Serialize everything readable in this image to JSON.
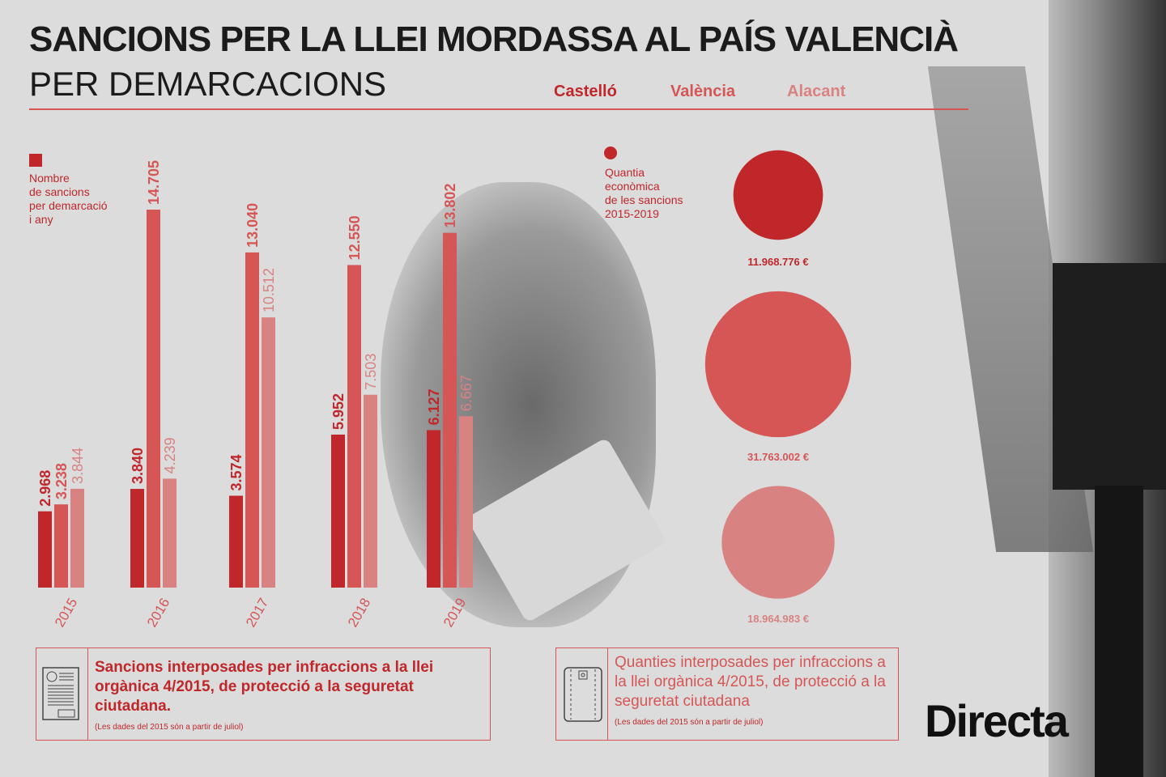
{
  "title": "SANCIONS PER LA LLEI MORDASSA AL PAÍS VALENCIÀ",
  "subtitle": "PER DEMARCACIONS",
  "logo": "Directa",
  "colors": {
    "Castelló": "#c0272a",
    "València": "#d65656",
    "Alacant": "#d98282"
  },
  "chart_data": [
    {
      "type": "bar",
      "title": "Nombre de sancions per demarcació i any",
      "note": [
        "Nombre",
        "de sancions",
        "per demarcació",
        "i any"
      ],
      "categories": [
        "2015",
        "2016",
        "2017",
        "2018",
        "2019"
      ],
      "series": [
        {
          "name": "Castelló",
          "values": [
            2968,
            3840,
            3574,
            5952,
            6127
          ],
          "labels": [
            "2.968",
            "3.840",
            "3.574",
            "5.952",
            "6.127"
          ]
        },
        {
          "name": "València",
          "values": [
            3238,
            14705,
            13040,
            12550,
            13802
          ],
          "labels": [
            "3.238",
            "14.705",
            "13.040",
            "12.550",
            "13.802"
          ]
        },
        {
          "name": "Alacant",
          "values": [
            3844,
            4239,
            10512,
            7503,
            6667
          ],
          "labels": [
            "3.844",
            "4.239",
            "10.512",
            "7.503",
            "6.667"
          ]
        }
      ]
    },
    {
      "type": "bubble",
      "note": [
        "Quantia",
        "econòmica",
        "de les sancions",
        "2015-2019"
      ],
      "categories": [
        "Castelló",
        "València",
        "Alacant"
      ],
      "values": [
        11968776,
        31763002,
        18964983
      ],
      "labels": [
        "11.968.776 €",
        "31.763.002 €",
        "18.964.983 €"
      ]
    }
  ],
  "boxes": [
    {
      "text": "Sancions interposades per infraccions a la llei orgànica 4/2015, de protecció a la seguretat ciutadana.",
      "note": "(Les dades del 2015  són a partir de juliol)",
      "icon": "document-icon"
    },
    {
      "text": "Quanties interposades per infraccions a la llei orgànica 4/2015, de protecció a la seguretat ciutadana",
      "note": "(Les dades del 2015  són a partir de juliol)",
      "icon": "wallet-icon"
    }
  ]
}
